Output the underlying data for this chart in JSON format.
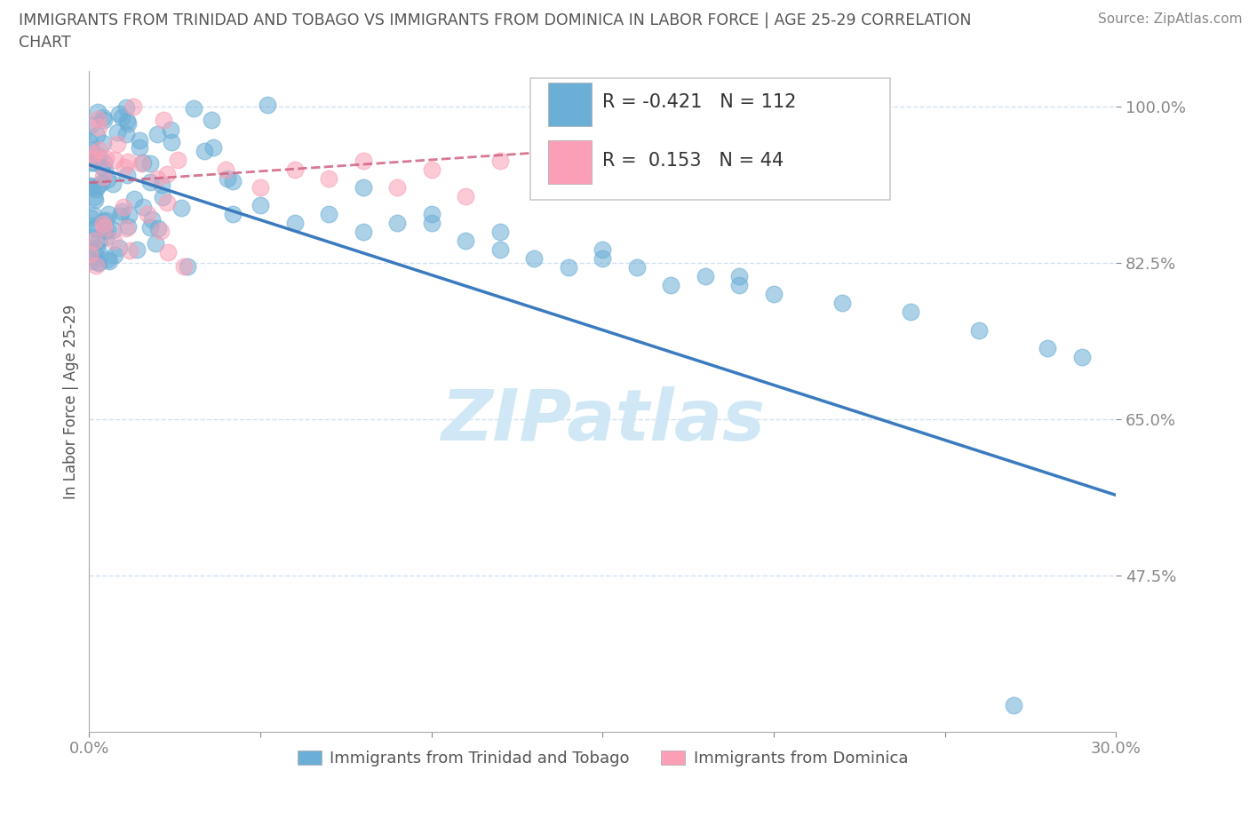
{
  "title_line1": "IMMIGRANTS FROM TRINIDAD AND TOBAGO VS IMMIGRANTS FROM DOMINICA IN LABOR FORCE | AGE 25-29 CORRELATION",
  "title_line2": "CHART",
  "source_text": "Source: ZipAtlas.com",
  "ylabel": "In Labor Force | Age 25-29",
  "legend_label_blue": "Immigrants from Trinidad and Tobago",
  "legend_label_pink": "Immigrants from Dominica",
  "R_blue": -0.421,
  "N_blue": 112,
  "R_pink": 0.153,
  "N_pink": 44,
  "color_blue": "#6baed6",
  "color_pink": "#fa9fb5",
  "trend_blue": "#3a7abf",
  "trend_pink": "#d06080",
  "watermark": "ZIPatlas",
  "watermark_color": "#d0e8f5",
  "xlim": [
    0.0,
    0.3
  ],
  "ylim": [
    0.3,
    1.04
  ],
  "yticks": [
    0.475,
    0.65,
    0.825,
    1.0
  ],
  "ytick_labels": [
    "47.5%",
    "65.0%",
    "82.5%",
    "100.0%"
  ],
  "xticks": [
    0.0,
    0.05,
    0.1,
    0.15,
    0.2,
    0.25,
    0.3
  ],
  "axis_color": "#4393c3",
  "grid_color": "#ccddee",
  "title_color": "#555555",
  "blue_trend_x": [
    0.0,
    0.3
  ],
  "blue_trend_y": [
    0.935,
    0.565
  ],
  "pink_trend_x": [
    0.0,
    0.175
  ],
  "pink_trend_y": [
    0.915,
    0.96
  ]
}
